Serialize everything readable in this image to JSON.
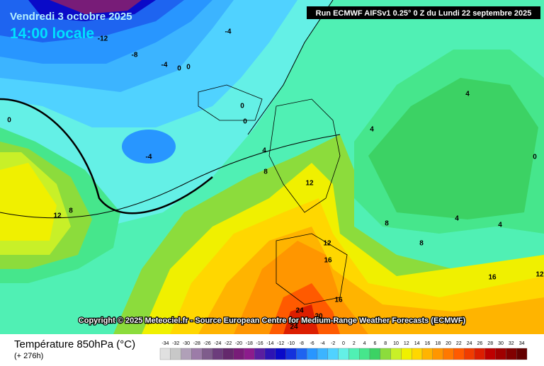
{
  "header": {
    "date": "Vendredi 3 octobre 2025",
    "time": "14:00 locale",
    "run": "Run ECMWF AIFSv1 0.25° 0 Z du Lundi 22 septembre 2025"
  },
  "map": {
    "contour_labels": [
      -12,
      -4,
      -8,
      -4,
      0,
      0,
      0,
      0,
      0,
      -4,
      4,
      8,
      12,
      12,
      8,
      4,
      4,
      0,
      8,
      4,
      4,
      12,
      16,
      8,
      16,
      16,
      12,
      24,
      24,
      20
    ],
    "copyright": "Copyright © 2025 Meteociel.fr - Source European Centre for Medium-Range Weather Forecasts (ECMWF)"
  },
  "footer": {
    "title": "Température 850hPa (°C)",
    "lead": "(+ 276h)"
  },
  "colorbar": {
    "ticks": [
      -34,
      -32,
      -30,
      -28,
      -26,
      -24,
      -22,
      -20,
      -18,
      -16,
      -14,
      -12,
      -10,
      -8,
      -6,
      -4,
      -2,
      0,
      2,
      4,
      6,
      8,
      10,
      12,
      14,
      16,
      18,
      20,
      22,
      24,
      26,
      28,
      30,
      32,
      34
    ],
    "colors": [
      "#e0e0e0",
      "#c8c8c8",
      "#b0a0b8",
      "#9c7ca8",
      "#7f5c8c",
      "#6c3c7c",
      "#64286c",
      "#781c78",
      "#8c1c8c",
      "#5a1ea0",
      "#2d14b4",
      "#0a0ac8",
      "#1432dc",
      "#1e64f0",
      "#2896ff",
      "#3cb4ff",
      "#50d2ff",
      "#64f0e6",
      "#50f0b4",
      "#46e68c",
      "#3cd264",
      "#8cdc3c",
      "#c8f028",
      "#f0f000",
      "#ffd700",
      "#ffb400",
      "#ff9600",
      "#ff7800",
      "#ff5a00",
      "#f03c00",
      "#dc1e00",
      "#be0000",
      "#a00000",
      "#820000",
      "#640000"
    ]
  }
}
